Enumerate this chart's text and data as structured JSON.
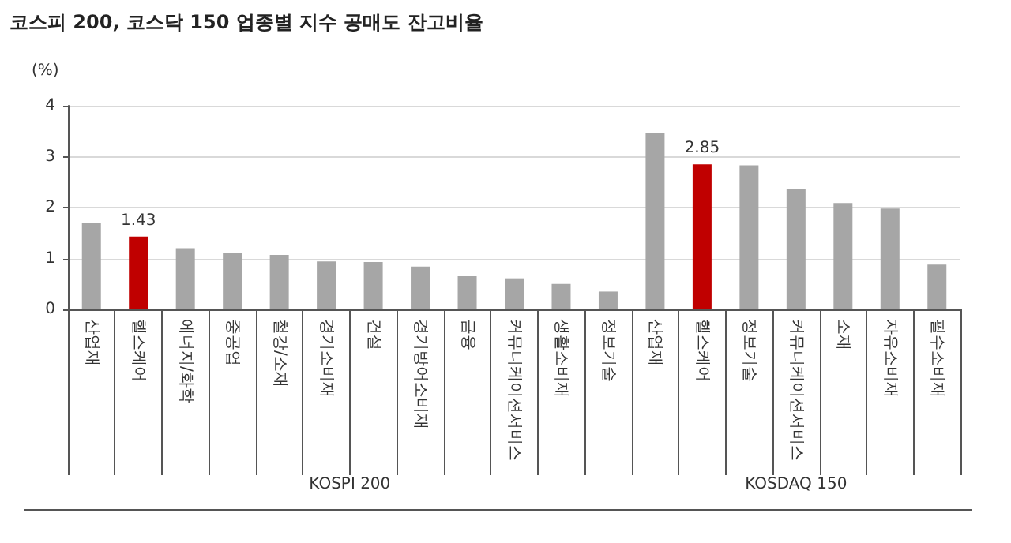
{
  "chart_data": {
    "type": "bar",
    "title": "코스피 200, 코스닥 150 업종별 지수 공매도 잔고비율",
    "ylabel": "(%)",
    "categories": [
      "산업재",
      "헬스케어",
      "에너지/화학",
      "중공업",
      "철강/소재",
      "경기소비재",
      "건설",
      "경기방어소비재",
      "금융",
      "커뮤니케이션서비스",
      "생활소비재",
      "정보기술",
      "산업재",
      "헬스케어",
      "정보기술",
      "커뮤니케이션서비스",
      "소재",
      "자유소비재",
      "필수소비재"
    ],
    "values": [
      1.7,
      1.43,
      1.2,
      1.1,
      1.07,
      0.94,
      0.93,
      0.84,
      0.65,
      0.61,
      0.5,
      0.35,
      3.47,
      2.85,
      2.83,
      2.36,
      2.09,
      1.98,
      0.88
    ],
    "colors": [
      "#a6a6a6",
      "#c00000",
      "#a6a6a6",
      "#a6a6a6",
      "#a6a6a6",
      "#a6a6a6",
      "#a6a6a6",
      "#a6a6a6",
      "#a6a6a6",
      "#a6a6a6",
      "#a6a6a6",
      "#a6a6a6",
      "#a6a6a6",
      "#c00000",
      "#a6a6a6",
      "#a6a6a6",
      "#a6a6a6",
      "#a6a6a6",
      "#a6a6a6"
    ],
    "value_labels": [
      null,
      "1.43",
      null,
      null,
      null,
      null,
      null,
      null,
      null,
      null,
      null,
      null,
      null,
      "2.85",
      null,
      null,
      null,
      null,
      null
    ],
    "ylim": [
      0,
      4
    ],
    "yticks": [
      0,
      1,
      2,
      3,
      4
    ],
    "grid": "y",
    "annotations": [
      "KOSPI 200",
      "KOSDAQ 150"
    ]
  }
}
